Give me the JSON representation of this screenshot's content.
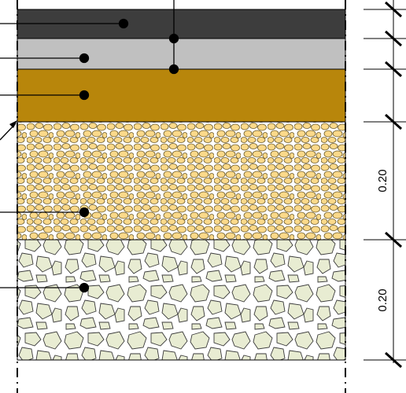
{
  "layers": [
    {
      "name": "top-layer",
      "color": "#3d3d3d"
    },
    {
      "name": "second-layer",
      "color": "#c0c0c0"
    },
    {
      "name": "third-layer",
      "color": "#b8860b"
    },
    {
      "name": "gravel-layer",
      "color": "#fbd98a",
      "pattern": "fine-stones"
    },
    {
      "name": "base-layer",
      "color": "#e8ecd2",
      "pattern": "coarse-stones"
    }
  ],
  "dimensions": {
    "gravel": "0.20",
    "base": "0.20"
  }
}
